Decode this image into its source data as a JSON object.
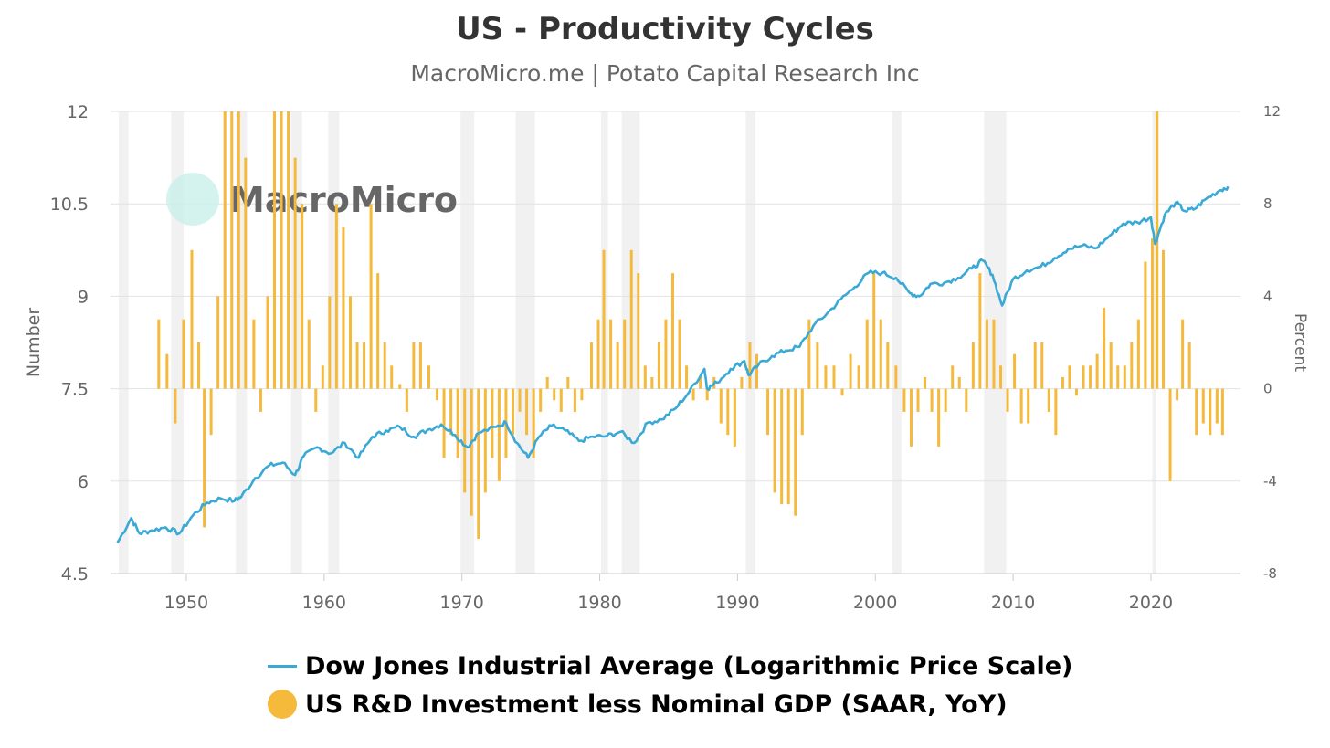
{
  "chart_data": {
    "type": "bar+line",
    "title": "US - Productivity Cycles",
    "subtitle": "MacroMicro.me | Potato Capital Research Inc",
    "watermark": "MacroMicro",
    "left_axis": {
      "label": "Number",
      "range": [
        4.5,
        12
      ],
      "ticks": [
        "4.5",
        "6",
        "7.5",
        "9",
        "10.5",
        "12"
      ]
    },
    "right_axis": {
      "label": "Percent",
      "range": [
        -8,
        12
      ],
      "ticks": [
        "-8",
        "-4",
        "0",
        "4",
        "8",
        "12"
      ]
    },
    "x_axis": {
      "range": [
        1944.5,
        2026.5
      ],
      "ticks": [
        "1950",
        "1960",
        "1970",
        "1980",
        "1990",
        "2000",
        "2010",
        "2020"
      ]
    },
    "grid": true,
    "legend_position": "bottom-center",
    "recessions": [
      [
        1945.1,
        1945.8
      ],
      [
        1948.9,
        1949.8
      ],
      [
        1953.6,
        1954.4
      ],
      [
        1957.6,
        1958.4
      ],
      [
        1960.3,
        1961.1
      ],
      [
        1969.9,
        1970.9
      ],
      [
        1973.9,
        1975.3
      ],
      [
        1980.1,
        1980.6
      ],
      [
        1981.6,
        1982.9
      ],
      [
        1990.6,
        1991.3
      ],
      [
        2001.2,
        2001.9
      ],
      [
        2007.9,
        2009.5
      ],
      [
        2020.1,
        2020.4
      ]
    ],
    "series": [
      {
        "name": "Dow Jones Industrial Average (Logarithmic Price Scale)",
        "axis": "left",
        "color": "#3AA9D6",
        "points": [
          [
            1945.0,
            5.0
          ],
          [
            1946.0,
            5.4
          ],
          [
            1946.6,
            5.15
          ],
          [
            1947.5,
            5.2
          ],
          [
            1948.5,
            5.25
          ],
          [
            1949.5,
            5.15
          ],
          [
            1950.5,
            5.45
          ],
          [
            1951.5,
            5.65
          ],
          [
            1952.5,
            5.72
          ],
          [
            1953.5,
            5.68
          ],
          [
            1954.0,
            5.75
          ],
          [
            1955.0,
            6.05
          ],
          [
            1956.0,
            6.25
          ],
          [
            1957.0,
            6.3
          ],
          [
            1957.9,
            6.1
          ],
          [
            1958.5,
            6.4
          ],
          [
            1959.5,
            6.55
          ],
          [
            1960.5,
            6.45
          ],
          [
            1961.5,
            6.62
          ],
          [
            1962.5,
            6.38
          ],
          [
            1963.5,
            6.72
          ],
          [
            1964.5,
            6.82
          ],
          [
            1965.5,
            6.88
          ],
          [
            1966.5,
            6.72
          ],
          [
            1967.5,
            6.83
          ],
          [
            1968.5,
            6.92
          ],
          [
            1969.5,
            6.75
          ],
          [
            1970.4,
            6.55
          ],
          [
            1971.2,
            6.78
          ],
          [
            1972.5,
            6.88
          ],
          [
            1973.2,
            6.95
          ],
          [
            1974.0,
            6.62
          ],
          [
            1974.8,
            6.38
          ],
          [
            1975.6,
            6.72
          ],
          [
            1976.5,
            6.9
          ],
          [
            1977.5,
            6.82
          ],
          [
            1978.5,
            6.65
          ],
          [
            1979.5,
            6.72
          ],
          [
            1980.5,
            6.73
          ],
          [
            1981.5,
            6.8
          ],
          [
            1982.5,
            6.62
          ],
          [
            1983.5,
            6.95
          ],
          [
            1984.5,
            7.0
          ],
          [
            1985.5,
            7.18
          ],
          [
            1986.5,
            7.45
          ],
          [
            1987.6,
            7.82
          ],
          [
            1987.8,
            7.5
          ],
          [
            1988.5,
            7.6
          ],
          [
            1989.5,
            7.82
          ],
          [
            1990.5,
            7.95
          ],
          [
            1990.8,
            7.72
          ],
          [
            1991.5,
            7.88
          ],
          [
            1992.5,
            8.03
          ],
          [
            1993.5,
            8.12
          ],
          [
            1994.5,
            8.18
          ],
          [
            1995.5,
            8.52
          ],
          [
            1996.5,
            8.72
          ],
          [
            1997.5,
            8.95
          ],
          [
            1998.5,
            9.15
          ],
          [
            1999.5,
            9.38
          ],
          [
            2000.5,
            9.38
          ],
          [
            2001.5,
            9.3
          ],
          [
            2002.5,
            9.05
          ],
          [
            2003.2,
            9.0
          ],
          [
            2004.0,
            9.2
          ],
          [
            2005.0,
            9.22
          ],
          [
            2006.0,
            9.3
          ],
          [
            2007.0,
            9.45
          ],
          [
            2007.8,
            9.58
          ],
          [
            2008.5,
            9.35
          ],
          [
            2009.2,
            8.85
          ],
          [
            2010.0,
            9.28
          ],
          [
            2011.0,
            9.42
          ],
          [
            2012.0,
            9.48
          ],
          [
            2013.0,
            9.62
          ],
          [
            2014.0,
            9.77
          ],
          [
            2015.0,
            9.82
          ],
          [
            2016.0,
            9.78
          ],
          [
            2017.0,
            9.98
          ],
          [
            2018.0,
            10.18
          ],
          [
            2019.0,
            10.2
          ],
          [
            2020.0,
            10.28
          ],
          [
            2020.3,
            9.85
          ],
          [
            2021.0,
            10.32
          ],
          [
            2021.8,
            10.52
          ],
          [
            2022.5,
            10.38
          ],
          [
            2023.2,
            10.42
          ],
          [
            2024.0,
            10.58
          ],
          [
            2025.0,
            10.72
          ],
          [
            2025.6,
            10.78
          ]
        ]
      },
      {
        "name": "US R&D Investment less Nominal GDP (SAAR, YoY)",
        "axis": "right",
        "color": "#F5B93C",
        "bars": [
          [
            1948.0,
            3
          ],
          [
            1948.6,
            1.5
          ],
          [
            1949.2,
            -1.5
          ],
          [
            1949.8,
            3
          ],
          [
            1950.4,
            6
          ],
          [
            1950.9,
            2
          ],
          [
            1951.3,
            -6
          ],
          [
            1951.8,
            -2
          ],
          [
            1952.3,
            4
          ],
          [
            1952.8,
            12
          ],
          [
            1953.3,
            12
          ],
          [
            1953.8,
            12
          ],
          [
            1954.3,
            10
          ],
          [
            1954.9,
            3
          ],
          [
            1955.4,
            -1
          ],
          [
            1955.9,
            4
          ],
          [
            1956.4,
            12
          ],
          [
            1956.9,
            12
          ],
          [
            1957.4,
            12
          ],
          [
            1957.9,
            10
          ],
          [
            1958.4,
            8
          ],
          [
            1958.9,
            3
          ],
          [
            1959.4,
            -1
          ],
          [
            1959.9,
            1
          ],
          [
            1960.4,
            4
          ],
          [
            1960.9,
            8
          ],
          [
            1961.4,
            7
          ],
          [
            1961.9,
            4
          ],
          [
            1962.4,
            2
          ],
          [
            1962.9,
            2
          ],
          [
            1963.4,
            8
          ],
          [
            1963.9,
            5
          ],
          [
            1964.4,
            2
          ],
          [
            1964.9,
            1
          ],
          [
            1965.5,
            0.2
          ],
          [
            1966.0,
            -1
          ],
          [
            1966.5,
            2
          ],
          [
            1967.0,
            2
          ],
          [
            1967.6,
            1
          ],
          [
            1968.2,
            -0.5
          ],
          [
            1968.7,
            -3
          ],
          [
            1969.2,
            -2
          ],
          [
            1969.7,
            -3
          ],
          [
            1970.2,
            -4.5
          ],
          [
            1970.7,
            -5.5
          ],
          [
            1971.2,
            -6.5
          ],
          [
            1971.7,
            -4.5
          ],
          [
            1972.2,
            -3
          ],
          [
            1972.7,
            -4
          ],
          [
            1973.2,
            -3
          ],
          [
            1973.7,
            -2
          ],
          [
            1974.2,
            -1
          ],
          [
            1974.7,
            -2
          ],
          [
            1975.2,
            -3
          ],
          [
            1975.7,
            -1
          ],
          [
            1976.2,
            0.5
          ],
          [
            1976.7,
            -0.5
          ],
          [
            1977.2,
            -1
          ],
          [
            1977.7,
            0.5
          ],
          [
            1978.2,
            -1
          ],
          [
            1978.7,
            -0.5
          ],
          [
            1979.4,
            2
          ],
          [
            1979.9,
            3
          ],
          [
            1980.3,
            6
          ],
          [
            1980.8,
            3
          ],
          [
            1981.3,
            2
          ],
          [
            1981.8,
            3
          ],
          [
            1982.3,
            6
          ],
          [
            1982.8,
            5
          ],
          [
            1983.3,
            1
          ],
          [
            1983.8,
            0.5
          ],
          [
            1984.3,
            2
          ],
          [
            1984.8,
            3
          ],
          [
            1985.3,
            5
          ],
          [
            1985.8,
            3
          ],
          [
            1986.3,
            1
          ],
          [
            1986.8,
            -0.5
          ],
          [
            1987.3,
            0.5
          ],
          [
            1987.8,
            -0.5
          ],
          [
            1988.3,
            0.5
          ],
          [
            1988.8,
            -1.5
          ],
          [
            1989.3,
            -2
          ],
          [
            1989.8,
            -2.5
          ],
          [
            1990.3,
            0.5
          ],
          [
            1990.9,
            2
          ],
          [
            1991.4,
            1.5
          ],
          [
            1992.2,
            -2
          ],
          [
            1992.7,
            -4.5
          ],
          [
            1993.2,
            -5
          ],
          [
            1993.7,
            -5
          ],
          [
            1994.2,
            -5.5
          ],
          [
            1994.7,
            -2
          ],
          [
            1995.2,
            3
          ],
          [
            1995.8,
            2
          ],
          [
            1996.4,
            1
          ],
          [
            1997.0,
            1
          ],
          [
            1997.6,
            -0.3
          ],
          [
            1998.2,
            1.5
          ],
          [
            1998.8,
            1
          ],
          [
            1999.4,
            3
          ],
          [
            1999.9,
            5
          ],
          [
            2000.4,
            3
          ],
          [
            2000.9,
            2
          ],
          [
            2001.5,
            1
          ],
          [
            2002.1,
            -1
          ],
          [
            2002.6,
            -2.5
          ],
          [
            2003.1,
            -1
          ],
          [
            2003.6,
            0.5
          ],
          [
            2004.1,
            -1
          ],
          [
            2004.6,
            -2.5
          ],
          [
            2005.1,
            -1
          ],
          [
            2005.6,
            1
          ],
          [
            2006.1,
            0.5
          ],
          [
            2006.6,
            -1
          ],
          [
            2007.1,
            2
          ],
          [
            2007.6,
            5
          ],
          [
            2008.1,
            3
          ],
          [
            2008.6,
            3
          ],
          [
            2009.1,
            1
          ],
          [
            2009.6,
            -1
          ],
          [
            2010.1,
            1.5
          ],
          [
            2010.6,
            -1.5
          ],
          [
            2011.1,
            -1.5
          ],
          [
            2011.6,
            2
          ],
          [
            2012.1,
            2
          ],
          [
            2012.6,
            -1
          ],
          [
            2013.1,
            -2
          ],
          [
            2013.6,
            0.5
          ],
          [
            2014.1,
            1
          ],
          [
            2014.6,
            -0.3
          ],
          [
            2015.1,
            1
          ],
          [
            2015.6,
            1
          ],
          [
            2016.1,
            1.5
          ],
          [
            2016.6,
            3.5
          ],
          [
            2017.1,
            2
          ],
          [
            2017.6,
            1
          ],
          [
            2018.1,
            1
          ],
          [
            2018.6,
            2
          ],
          [
            2019.1,
            3
          ],
          [
            2019.6,
            5.5
          ],
          [
            2020.1,
            6.5
          ],
          [
            2020.45,
            12
          ],
          [
            2020.9,
            6
          ],
          [
            2021.4,
            -4
          ],
          [
            2021.9,
            -0.5
          ],
          [
            2022.3,
            3
          ],
          [
            2022.8,
            2
          ],
          [
            2023.3,
            -2
          ],
          [
            2023.8,
            -1.5
          ],
          [
            2024.3,
            -2
          ],
          [
            2024.8,
            -1.5
          ],
          [
            2025.2,
            -2
          ]
        ]
      }
    ]
  },
  "legend": {
    "line_label": "Dow Jones Industrial Average (Logarithmic Price Scale)",
    "bar_label": "US R&D Investment less Nominal GDP (SAAR, YoY)",
    "line_color": "#3AA9D6",
    "bar_color": "#F5B93C"
  }
}
